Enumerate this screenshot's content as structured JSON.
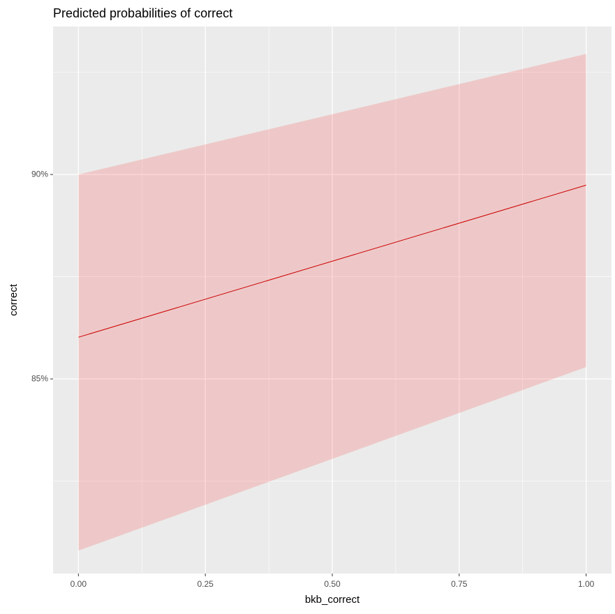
{
  "chart_data": {
    "type": "ribbon-line",
    "title": "Predicted probabilities of correct",
    "x_label": "bkb_correct",
    "y_label": "correct",
    "x": [
      0,
      1
    ],
    "values": [
      86.02,
      89.74
    ],
    "lower": [
      80.8,
      85.29
    ],
    "upper": [
      90.0,
      92.95
    ],
    "line_color": "#cc0000",
    "ribbon_color": "#ff0000",
    "ribbon_opacity": 0.15,
    "xlim": [
      -0.05,
      1.05
    ],
    "ylim": [
      80.24,
      93.62
    ],
    "xticks": [
      {
        "value": 0,
        "label": "0.00"
      },
      {
        "value": 0.25,
        "label": "0.25"
      },
      {
        "value": 0.5,
        "label": "0.50"
      },
      {
        "value": 0.75,
        "label": "0.75"
      },
      {
        "value": 1,
        "label": "1.00"
      }
    ],
    "yticks": [
      {
        "value": 85,
        "label": "85%"
      },
      {
        "value": 90,
        "label": "90%"
      }
    ],
    "x_minor_ticks": [
      0.125,
      0.375,
      0.625,
      0.875
    ],
    "y_minor_ticks": [
      82.5,
      87.5,
      92.5
    ],
    "grid": true
  }
}
